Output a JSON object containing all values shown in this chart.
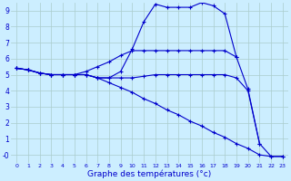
{
  "xlabel": "Graphe des températures (°c)",
  "background_color": "#cceeff",
  "grid_color": "#aacccc",
  "line_color": "#0000cc",
  "marker": "+",
  "hours": [
    0,
    1,
    2,
    3,
    4,
    5,
    6,
    7,
    8,
    9,
    10,
    11,
    12,
    13,
    14,
    15,
    16,
    17,
    18,
    19,
    20,
    21,
    22,
    23
  ],
  "line1": [
    5.4,
    5.3,
    5.1,
    5.0,
    5.0,
    5.0,
    5.0,
    4.8,
    4.8,
    5.2,
    6.6,
    8.3,
    9.4,
    9.2,
    9.2,
    9.2,
    9.5,
    9.3,
    8.8,
    6.1,
    4.1,
    0.7,
    null,
    null
  ],
  "line2": [
    5.4,
    5.3,
    5.1,
    5.0,
    5.0,
    5.0,
    5.2,
    5.5,
    5.8,
    6.2,
    6.5,
    6.5,
    6.5,
    6.5,
    6.5,
    6.5,
    6.5,
    6.5,
    6.5,
    6.1,
    null,
    null,
    null,
    null
  ],
  "line3": [
    5.4,
    5.3,
    5.1,
    5.0,
    5.0,
    5.0,
    5.0,
    4.8,
    4.8,
    4.8,
    4.8,
    4.9,
    5.0,
    5.0,
    5.0,
    5.0,
    5.0,
    5.0,
    5.0,
    4.8,
    4.0,
    0.7,
    -0.1,
    -0.1
  ],
  "line4": [
    5.4,
    5.3,
    5.1,
    5.0,
    5.0,
    5.0,
    5.0,
    4.8,
    4.5,
    4.2,
    3.9,
    3.5,
    3.2,
    2.8,
    2.5,
    2.1,
    1.8,
    1.4,
    1.1,
    0.7,
    0.4,
    0.0,
    -0.1,
    -0.1
  ],
  "ylim": [
    -0.5,
    9.5
  ],
  "yticks": [
    0,
    1,
    2,
    3,
    4,
    5,
    6,
    7,
    8,
    9
  ],
  "ytick_labels": [
    "-0",
    "1",
    "2",
    "3",
    "4",
    "5",
    "6",
    "7",
    "8",
    "9"
  ],
  "xlim": [
    -0.5,
    23.5
  ],
  "xticks": [
    0,
    1,
    2,
    3,
    4,
    5,
    6,
    7,
    8,
    9,
    10,
    11,
    12,
    13,
    14,
    15,
    16,
    17,
    18,
    19,
    20,
    21,
    22,
    23
  ]
}
